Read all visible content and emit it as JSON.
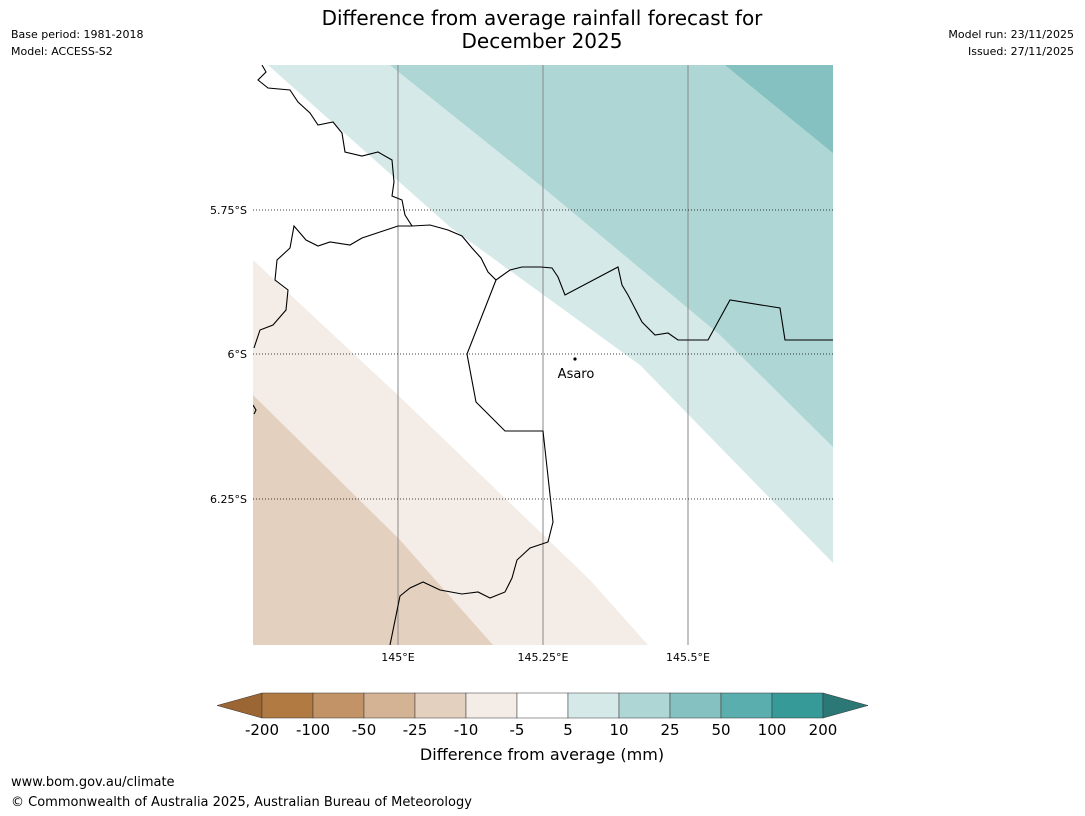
{
  "title_line1": "Difference from average rainfall forecast for",
  "title_line2": "December 2025",
  "meta_left": {
    "base_period": "Base period: 1981-2018",
    "model": "Model: ACCESS-S2"
  },
  "meta_right": {
    "model_run": "Model run: 23/11/2025",
    "issued": "Issued: 27/11/2025"
  },
  "map": {
    "lat_labels": [
      "5.75°S",
      "6°S",
      "6.25°S"
    ],
    "lon_labels": [
      "145°E",
      "145.25°E",
      "145.5°E"
    ],
    "place_label": "Asaro"
  },
  "colorbar": {
    "ticks": [
      "-200",
      "-100",
      "-50",
      "-25",
      "-10",
      "-5",
      "5",
      "10",
      "25",
      "50",
      "100",
      "200"
    ],
    "colors": [
      "#9c6534",
      "#b07a42",
      "#c29366",
      "#d3b394",
      "#e3d0bf",
      "#f4ede7",
      "#ffffff",
      "#d6e9e9",
      "#add6d5",
      "#85c1c0",
      "#5baeae",
      "#369a98",
      "#2b7877"
    ],
    "label": "Difference from average (mm)"
  },
  "footer": {
    "url": "www.bom.gov.au/climate",
    "copyright": "© Commonwealth of Australia 2025, Australian Bureau of Meteorology"
  }
}
